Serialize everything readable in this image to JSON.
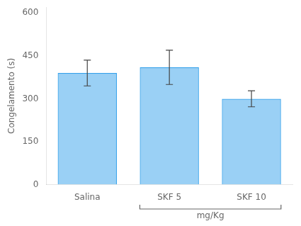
{
  "chart_data": {
    "type": "bar",
    "categories": [
      "Salina",
      "SKF 5",
      "SKF 10"
    ],
    "values": [
      390,
      410,
      300
    ],
    "errors": [
      45,
      60,
      28
    ],
    "ylabel": "Congelamento (s)",
    "annotation": "mg/Kg",
    "ylim": [
      0,
      620
    ],
    "yticks": [
      0,
      150,
      300,
      450,
      600
    ],
    "grid": false
  }
}
